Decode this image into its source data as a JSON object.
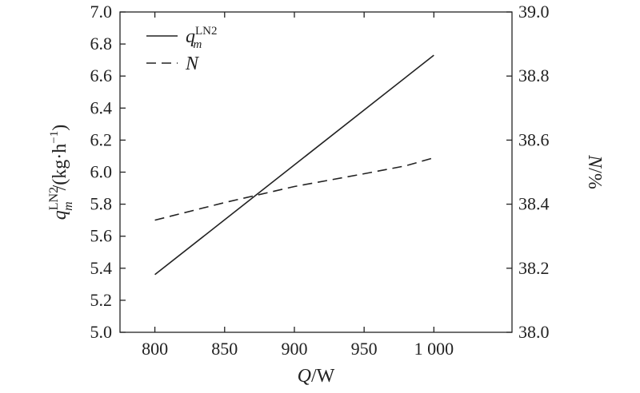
{
  "chart_data": {
    "type": "line",
    "x": [
      800,
      1000
    ],
    "xlim": [
      775,
      1056
    ],
    "x_ticks": [
      800,
      850,
      900,
      950,
      1000
    ],
    "x_tick_labels": [
      "800",
      "850",
      "900",
      "950",
      "1 000"
    ],
    "xlabel": {
      "var": "Q",
      "unit": "/W"
    },
    "left_axis": {
      "ylim": [
        5.0,
        7.0
      ],
      "ticks": [
        5.0,
        5.2,
        5.4,
        5.6,
        5.8,
        6.0,
        6.2,
        6.4,
        6.6,
        6.8,
        7.0
      ],
      "tick_labels": [
        "5.0",
        "5.2",
        "5.4",
        "5.6",
        "5.8",
        "6.0",
        "6.2",
        "6.4",
        "6.6",
        "6.8",
        "7.0"
      ],
      "label": {
        "var": "q",
        "sub": "m",
        "sup": "LN2",
        "unit_open": "/(kg·h",
        "unit_exp": "−1",
        "unit_close": ")"
      }
    },
    "right_axis": {
      "ylim": [
        38.0,
        39.0
      ],
      "ticks": [
        38.0,
        38.2,
        38.4,
        38.6,
        38.8,
        39.0
      ],
      "tick_labels": [
        "38.0",
        "38.2",
        "38.4",
        "38.6",
        "38.8",
        "39.0"
      ],
      "label": {
        "var": "N",
        "unit": "/%"
      }
    },
    "series": [
      {
        "name": "q_m^LN2",
        "axis": "left",
        "style": "solid",
        "x": [
          800,
          1000
        ],
        "y": [
          5.36,
          6.73
        ]
      },
      {
        "name": "N",
        "axis": "right",
        "style": "dashed",
        "x": [
          800,
          850,
          900,
          950,
          980,
          1000
        ],
        "y": [
          38.35,
          38.405,
          38.455,
          38.495,
          38.52,
          38.545
        ]
      }
    ],
    "legend": {
      "placement": "top-left",
      "entries": [
        {
          "style": "solid",
          "var": "q",
          "sub": "m",
          "sup": "LN2"
        },
        {
          "style": "dashed",
          "var": "N"
        }
      ]
    },
    "grid": false
  }
}
